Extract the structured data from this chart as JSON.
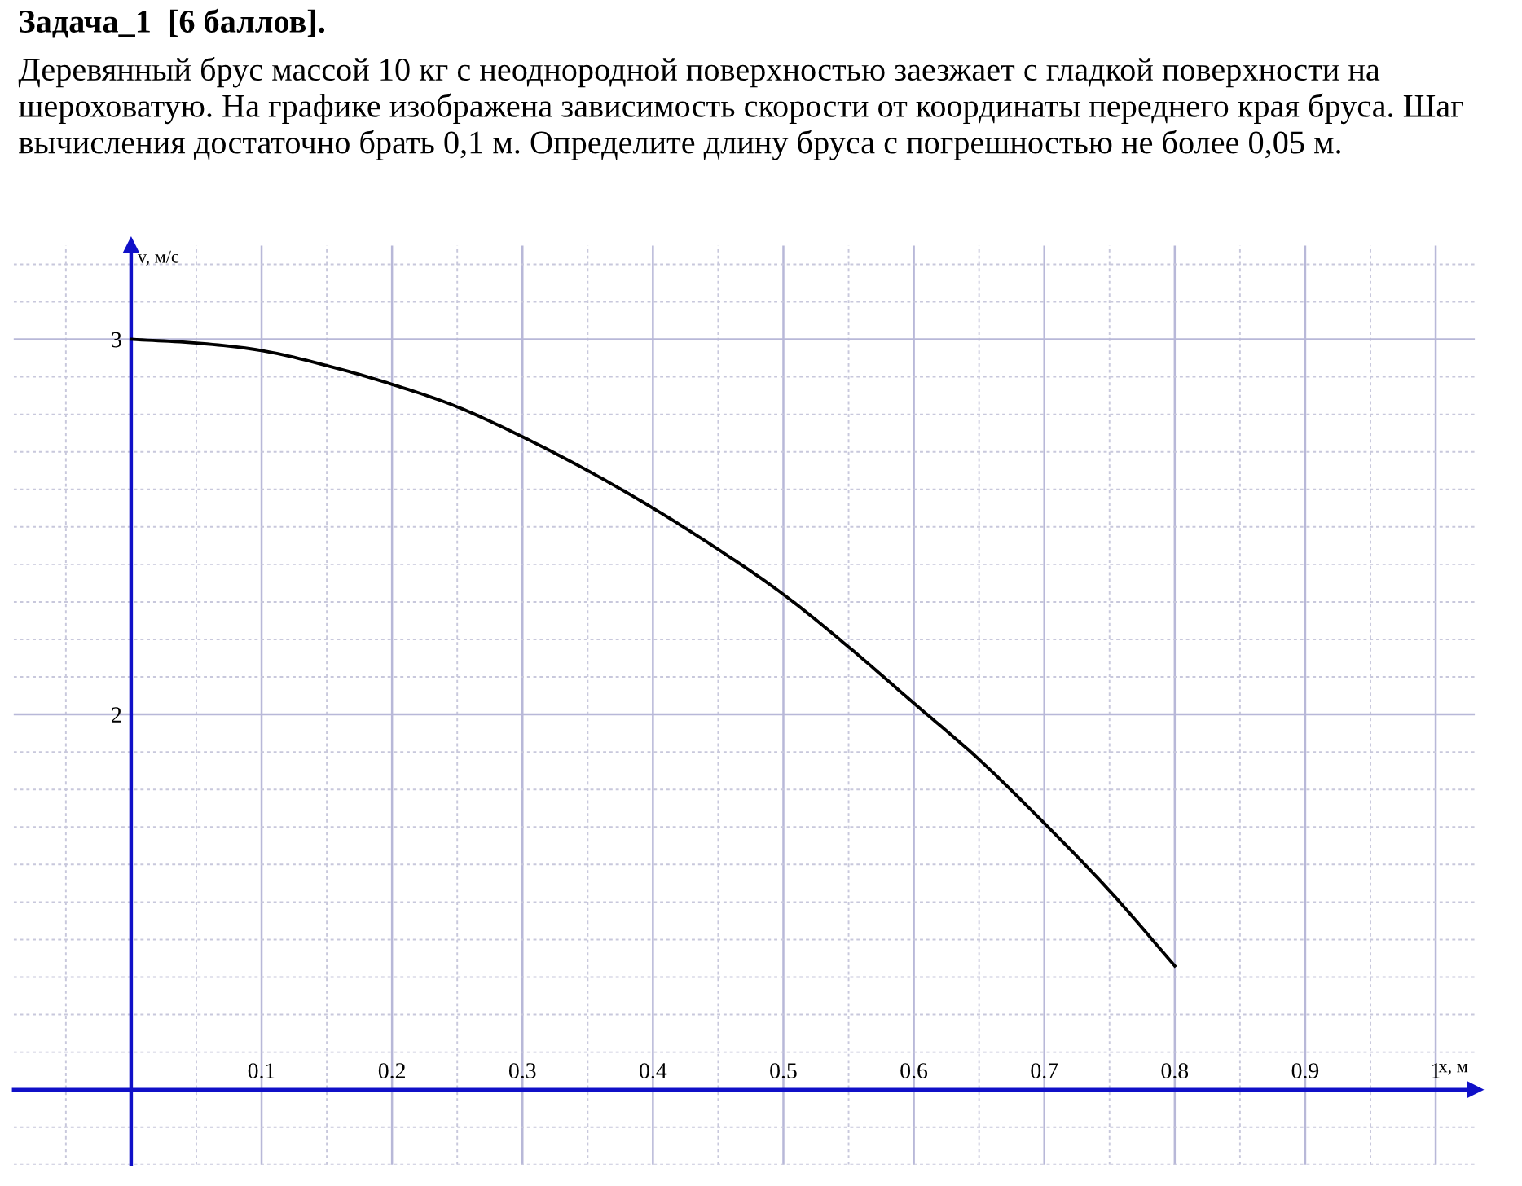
{
  "chart_data": {
    "type": "line",
    "title": "Задача_1  [6 баллов].",
    "subtitle": "Деревянный брус массой 10 кг с неоднородной поверхностью заезжает с гладкой поверхности на шероховатую. На графике изображена зависимость скорости от координаты переднего края бруса. Шаг вычисления достаточно брать 0,1 м. Определите длину бруса с погрешностью не более 0,05 м.",
    "xlabel": "x, м",
    "ylabel": "v, м/с",
    "x": [
      0,
      0.05,
      0.1,
      0.15,
      0.2,
      0.25,
      0.3,
      0.35,
      0.4,
      0.45,
      0.5,
      0.55,
      0.6,
      0.65,
      0.7,
      0.75,
      0.8
    ],
    "series": [
      {
        "color": "#000000",
        "values": [
          3.0,
          2.99,
          2.97,
          2.93,
          2.88,
          2.82,
          2.74,
          2.65,
          2.55,
          2.44,
          2.32,
          2.18,
          2.03,
          1.88,
          1.71,
          1.53,
          1.33
        ]
      }
    ],
    "xlim": [
      -0.09,
      1.03
    ],
    "ylim": [
      0.8,
      3.25
    ],
    "xticks": [
      0.1,
      0.2,
      0.3,
      0.4,
      0.5,
      0.6,
      0.7,
      0.8,
      0.9,
      1
    ],
    "yticks": [
      2,
      3
    ],
    "grid": true,
    "marker": "none",
    "line_style": "solid",
    "legend": false
  }
}
